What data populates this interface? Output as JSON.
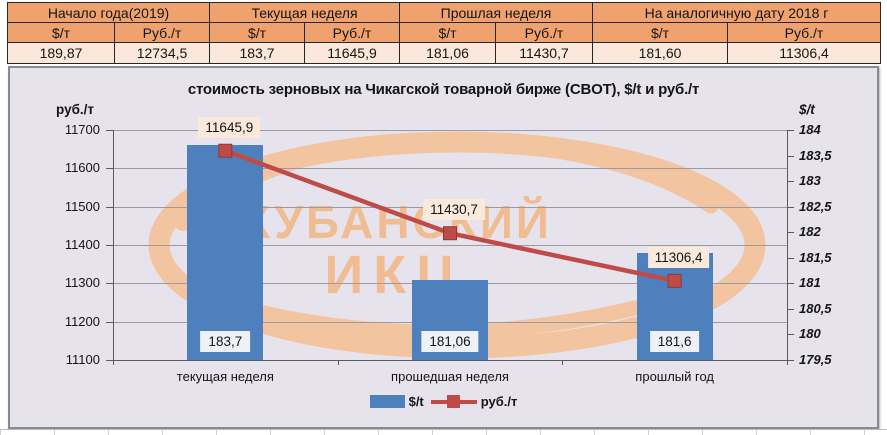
{
  "table": {
    "groups": [
      {
        "label": "Начало года(2019)",
        "unit1": "$/т",
        "unit2": "Руб./т",
        "value1": "189,87",
        "value2": "12734,5"
      },
      {
        "label": "Текущая неделя",
        "unit1": "$/т",
        "unit2": "Руб./т",
        "value1": "183,7",
        "value2": "11645,9"
      },
      {
        "label": "Прошлая неделя",
        "unit1": "$/т",
        "unit2": "Руб./т",
        "value1": "181,06",
        "value2": "11430,7"
      },
      {
        "label": "На аналогичную дату 2018 г",
        "unit1": "$/т",
        "unit2": "Руб./т",
        "value1": "181,60",
        "value2": "11306,4"
      }
    ]
  },
  "chart_data": {
    "type": "bar",
    "title": "стоимость зерновых на Чикагской товарной бирже (CBOT), $/t и руб./т",
    "categories": [
      "текущая неделя",
      "прошедшая неделя",
      "прошлый год"
    ],
    "series": [
      {
        "name": "$/t",
        "kind": "bar",
        "axis": "right",
        "values": [
          183.7,
          181.06,
          181.6
        ],
        "labels": [
          "183,7",
          "181,06",
          "181,6"
        ],
        "color": "#4D80BC"
      },
      {
        "name": "руб./т",
        "kind": "line",
        "axis": "left",
        "values": [
          11645.9,
          11430.7,
          11306.4
        ],
        "labels": [
          "11645,9",
          "11430,7",
          "11306,4"
        ],
        "color": "#BE4B48"
      }
    ],
    "left_axis": {
      "title": "руб./т",
      "min": 11100,
      "max": 11700,
      "step": 100,
      "ticks": [
        "11700",
        "11600",
        "11500",
        "11400",
        "11300",
        "11200",
        "11100"
      ]
    },
    "right_axis": {
      "title": "$/t",
      "min": 179.5,
      "max": 184,
      "step": 0.5,
      "ticks": [
        "184",
        "183,5",
        "183",
        "182,5",
        "182",
        "181,5",
        "181",
        "180,5",
        "180",
        "179,5"
      ]
    },
    "legend": [
      "$/t",
      "руб./т"
    ],
    "legend_position": "bottom",
    "grid": true,
    "watermark": {
      "line1": "КУБАНСКИЙ",
      "line2": "ИКЦ"
    },
    "colors": {
      "bar": "#4D80BC",
      "line": "#BE4B48",
      "marker_edge": "#943634",
      "plot_bg": "#E7E3ED",
      "watermark": "#F2C5A0",
      "bar_label_bg": "#EFF1F8",
      "line_label_bg": "#FBE9DB"
    }
  }
}
